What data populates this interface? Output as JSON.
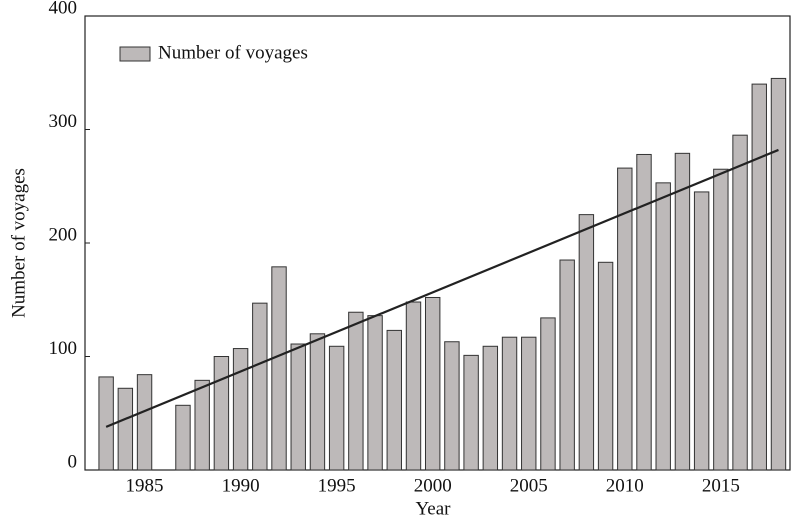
{
  "chart_data": {
    "type": "bar",
    "x_label": "Year",
    "y_label": "Number of voyages",
    "x": [
      1983,
      1984,
      1985,
      1986,
      1987,
      1988,
      1989,
      1990,
      1991,
      1992,
      1993,
      1994,
      1995,
      1996,
      1997,
      1998,
      1999,
      2000,
      2001,
      2002,
      2003,
      2004,
      2005,
      2006,
      2007,
      2008,
      2009,
      2010,
      2011,
      2012,
      2013,
      2014,
      2015,
      2016,
      2017,
      2018
    ],
    "series": [
      {
        "name": "Number of voyages",
        "color": "#bdb9b9",
        "values": [
          82,
          72,
          84,
          0,
          57,
          79,
          100,
          107,
          147,
          179,
          111,
          120,
          109,
          139,
          136,
          123,
          148,
          152,
          113,
          101,
          109,
          117,
          117,
          134,
          185,
          225,
          183,
          266,
          278,
          253,
          279,
          245,
          265,
          295,
          340,
          345
        ]
      }
    ],
    "trend": {
      "x": [
        1983,
        2018
      ],
      "values": [
        38,
        282
      ],
      "color": "#222222"
    },
    "xlim": [
      1981.9,
      2018.6
    ],
    "xticks": [
      1985,
      1990,
      1995,
      2000,
      2005,
      2010,
      2015
    ],
    "ylim": [
      0,
      400
    ],
    "yticks": [
      0,
      100,
      200,
      300,
      400
    ],
    "legend": "upper left"
  }
}
